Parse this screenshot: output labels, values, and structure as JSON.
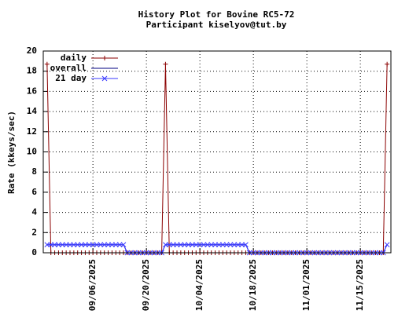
{
  "chart_data": {
    "type": "line",
    "title": "History Plot for Bovine RC5-72",
    "subtitle": "Participant kiselyov@tut.by",
    "y_label": "Rate (kkeys/sec)",
    "x": [
      "08/25/2025",
      "08/26/2025",
      "08/27/2025",
      "08/28/2025",
      "08/29/2025",
      "08/30/2025",
      "08/31/2025",
      "09/01/2025",
      "09/02/2025",
      "09/03/2025",
      "09/04/2025",
      "09/05/2025",
      "09/06/2025",
      "09/07/2025",
      "09/08/2025",
      "09/09/2025",
      "09/10/2025",
      "09/11/2025",
      "09/12/2025",
      "09/13/2025",
      "09/14/2025",
      "09/15/2025",
      "09/16/2025",
      "09/17/2025",
      "09/18/2025",
      "09/19/2025",
      "09/20/2025",
      "09/21/2025",
      "09/22/2025",
      "09/23/2025",
      "09/24/2025",
      "09/25/2025",
      "09/26/2025",
      "09/27/2025",
      "09/28/2025",
      "09/29/2025",
      "09/30/2025",
      "10/01/2025",
      "10/02/2025",
      "10/03/2025",
      "10/04/2025",
      "10/05/2025",
      "10/06/2025",
      "10/07/2025",
      "10/08/2025",
      "10/09/2025",
      "10/10/2025",
      "10/11/2025",
      "10/12/2025",
      "10/13/2025",
      "10/14/2025",
      "10/15/2025",
      "10/16/2025",
      "10/17/2025",
      "10/18/2025",
      "10/19/2025",
      "10/20/2025",
      "10/21/2025",
      "10/22/2025",
      "10/23/2025",
      "10/24/2025",
      "10/25/2025",
      "10/26/2025",
      "10/27/2025",
      "10/28/2025",
      "10/29/2025",
      "10/30/2025",
      "10/31/2025",
      "11/01/2025",
      "11/02/2025",
      "11/03/2025",
      "11/04/2025",
      "11/05/2025",
      "11/06/2025",
      "11/07/2025",
      "11/08/2025",
      "11/09/2025",
      "11/10/2025",
      "11/11/2025",
      "11/12/2025",
      "11/13/2025",
      "11/14/2025",
      "11/15/2025",
      "11/16/2025",
      "11/17/2025",
      "11/18/2025",
      "11/19/2025",
      "11/20/2025",
      "11/21/2025",
      "11/22/2025"
    ],
    "series": [
      {
        "name": "daily",
        "color": "#8b0000",
        "marker": "plus",
        "values": [
          18.7,
          0,
          0,
          0,
          0,
          0,
          0,
          0,
          0,
          0,
          0,
          0,
          0,
          0,
          0,
          0,
          0,
          0,
          0,
          0,
          0,
          0,
          0,
          0,
          0,
          0,
          0,
          0,
          0,
          0,
          0,
          18.7,
          0,
          0,
          0,
          0,
          0,
          0,
          0,
          0,
          0,
          0,
          0,
          0,
          0,
          0,
          0,
          0,
          0,
          0,
          0,
          0,
          0,
          0,
          0,
          0,
          0,
          0,
          0,
          0,
          0,
          0,
          0,
          0,
          0,
          0,
          0,
          0,
          0,
          0,
          0,
          0,
          0,
          0,
          0,
          0,
          0,
          0,
          0,
          0,
          0,
          0,
          0,
          0,
          0,
          0,
          0,
          0,
          0,
          18.7
        ]
      },
      {
        "name": "overall",
        "color": "#000080",
        "marker": "none",
        "values": [
          0.8,
          0.8,
          0.8,
          0.8,
          0.8,
          0.8,
          0.8,
          0.8,
          0.8,
          0.8,
          0.8,
          0.8,
          0.8,
          0.8,
          0.8,
          0.8,
          0.8,
          0.8,
          0.8,
          0.8,
          0.8,
          0,
          0,
          0,
          0,
          0,
          0,
          0,
          0,
          0,
          0,
          0.8,
          0.8,
          0.8,
          0.8,
          0.8,
          0.8,
          0.8,
          0.8,
          0.8,
          0.8,
          0.8,
          0.8,
          0.8,
          0.8,
          0.8,
          0.8,
          0.8,
          0.8,
          0.8,
          0.8,
          0.8,
          0.8,
          0,
          0,
          0,
          0,
          0,
          0,
          0,
          0,
          0,
          0,
          0,
          0,
          0,
          0,
          0,
          0,
          0,
          0,
          0,
          0,
          0,
          0,
          0,
          0,
          0,
          0,
          0,
          0,
          0,
          0,
          0,
          0,
          0,
          0,
          0,
          0,
          0.8
        ]
      },
      {
        "name": "21 day",
        "color": "#3a3aff",
        "marker": "cross",
        "values": [
          0.8,
          0.8,
          0.8,
          0.8,
          0.8,
          0.8,
          0.8,
          0.8,
          0.8,
          0.8,
          0.8,
          0.8,
          0.8,
          0.8,
          0.8,
          0.8,
          0.8,
          0.8,
          0.8,
          0.8,
          0.8,
          0,
          0,
          0,
          0,
          0,
          0,
          0,
          0,
          0,
          0,
          0.8,
          0.8,
          0.8,
          0.8,
          0.8,
          0.8,
          0.8,
          0.8,
          0.8,
          0.8,
          0.8,
          0.8,
          0.8,
          0.8,
          0.8,
          0.8,
          0.8,
          0.8,
          0.8,
          0.8,
          0.8,
          0.8,
          0,
          0,
          0,
          0,
          0,
          0,
          0,
          0,
          0,
          0,
          0,
          0,
          0,
          0,
          0,
          0,
          0,
          0,
          0,
          0,
          0,
          0,
          0,
          0,
          0,
          0,
          0,
          0,
          0,
          0,
          0,
          0,
          0,
          0,
          0,
          0,
          0.8
        ]
      }
    ],
    "xlim": [
      "08/24/2025",
      "11/23/2025"
    ],
    "xticks": [
      "09/06/2025",
      "09/20/2025",
      "10/04/2025",
      "10/18/2025",
      "11/01/2025",
      "11/15/2025"
    ],
    "ylim": [
      0,
      20
    ],
    "yticks": [
      0,
      2,
      4,
      6,
      8,
      10,
      12,
      14,
      16,
      18,
      20
    ],
    "grid": true,
    "legend": "top-left"
  }
}
